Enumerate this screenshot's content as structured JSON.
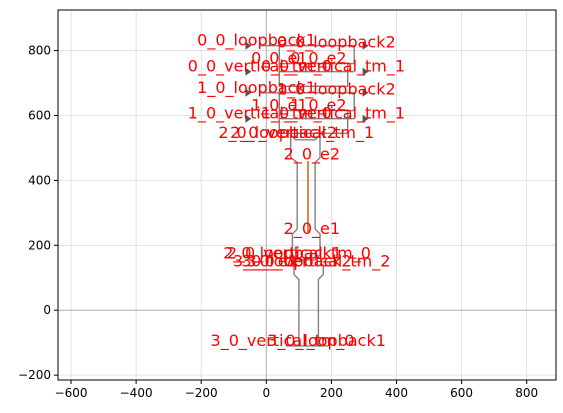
{
  "chart_data": {
    "type": "scatter",
    "xlim": [
      -640,
      890
    ],
    "ylim": [
      -215,
      925
    ],
    "grid": true,
    "x_ticks": [
      -600,
      -400,
      -200,
      0,
      200,
      400,
      600,
      800
    ],
    "y_ticks": [
      -200,
      0,
      200,
      400,
      600,
      800
    ],
    "x_tick_labels": [
      "−600",
      "−400",
      "−200",
      "0",
      "200",
      "400",
      "600",
      "800"
    ],
    "y_tick_labels": [
      "−200",
      "0",
      "200",
      "400",
      "600",
      "800"
    ],
    "label_color": "#ff0000",
    "marker_color": "#707070",
    "labels": [
      {
        "text": "0_0_loopback1",
        "x": -30,
        "y": 815
      },
      {
        "text": "0_0_loopback2",
        "x": 215,
        "y": 810
      },
      {
        "text": "0_0_e1",
        "x": 40,
        "y": 760
      },
      {
        "text": "0_0_e2",
        "x": 160,
        "y": 760
      },
      {
        "text": "0_0_vertical_tm_0",
        "x": -20,
        "y": 735
      },
      {
        "text": "0_0_vertical_tm_1",
        "x": 205,
        "y": 735
      },
      {
        "text": "1_0_loopback1",
        "x": -30,
        "y": 670
      },
      {
        "text": "1_0_loopback2",
        "x": 215,
        "y": 665
      },
      {
        "text": "1_0_e1",
        "x": 40,
        "y": 615
      },
      {
        "text": "1_0_e2",
        "x": 160,
        "y": 615
      },
      {
        "text": "1_0_vertical_tm_0",
        "x": -20,
        "y": 590
      },
      {
        "text": "1_0_vertical_tm_1",
        "x": 205,
        "y": 590
      },
      {
        "text": "2_0_loopback2",
        "x": 35,
        "y": 530
      },
      {
        "text": "2_0_vertical_tm_1",
        "x": 110,
        "y": 530
      },
      {
        "text": "2_0_e2",
        "x": 140,
        "y": 465
      },
      {
        "text": "2_0_e1",
        "x": 140,
        "y": 235
      },
      {
        "text": "2_0_loopback1",
        "x": 50,
        "y": 160
      },
      {
        "text": "2_0_vertical_tm_0",
        "x": 100,
        "y": 160
      },
      {
        "text": "3_0_e1",
        "x": 10,
        "y": 135
      },
      {
        "text": "3_0_loopback2",
        "x": 80,
        "y": 135
      },
      {
        "text": "3_0_vertical_tm_2",
        "x": 160,
        "y": 135
      },
      {
        "text": "3_0_vertical_tm_0",
        "x": 50,
        "y": -110
      },
      {
        "text": "3_0_loopback1",
        "x": 185,
        "y": -110
      }
    ]
  }
}
